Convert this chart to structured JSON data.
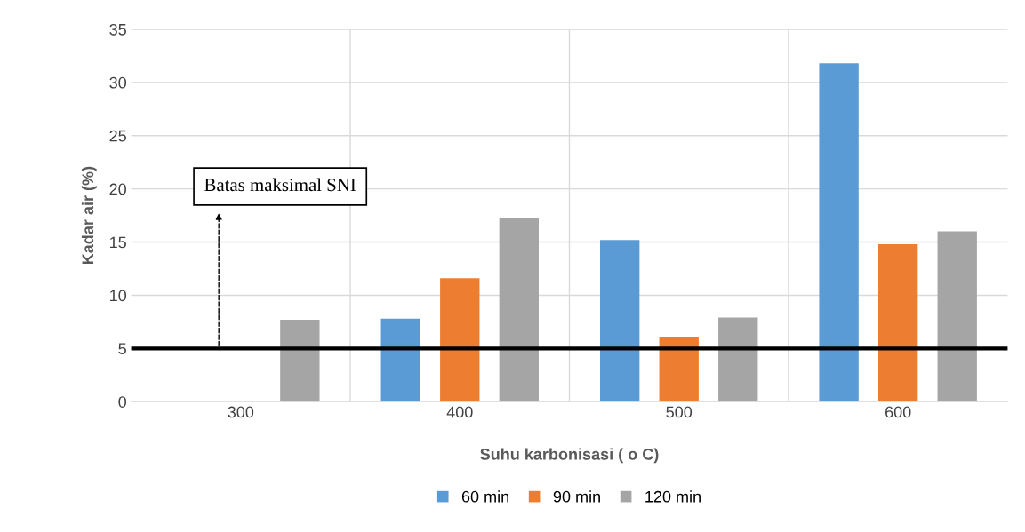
{
  "chart_data": {
    "type": "bar",
    "xlabel": "Suhu karbonisasi ( o C)",
    "ylabel": "Kadar air (%)",
    "categories": [
      "300",
      "400",
      "500",
      "600"
    ],
    "series": [
      {
        "name": "60 min",
        "color": "#5b9bd5",
        "values": [
          null,
          7.8,
          15.2,
          31.8
        ]
      },
      {
        "name": "90 min",
        "color": "#ed7d31",
        "values": [
          null,
          11.6,
          6.1,
          14.8
        ]
      },
      {
        "name": "120 min",
        "color": "#a5a5a5",
        "values": [
          7.7,
          17.3,
          7.9,
          16.0
        ]
      }
    ],
    "ylim": [
      0,
      35
    ],
    "yticks": [
      0,
      5,
      10,
      15,
      20,
      25,
      30,
      35
    ],
    "ref_lines": [
      {
        "axis": "y",
        "value": 5,
        "label": "Batas maksimal SNI",
        "color": "#000000"
      }
    ],
    "grid": true,
    "legend": "bottom"
  }
}
